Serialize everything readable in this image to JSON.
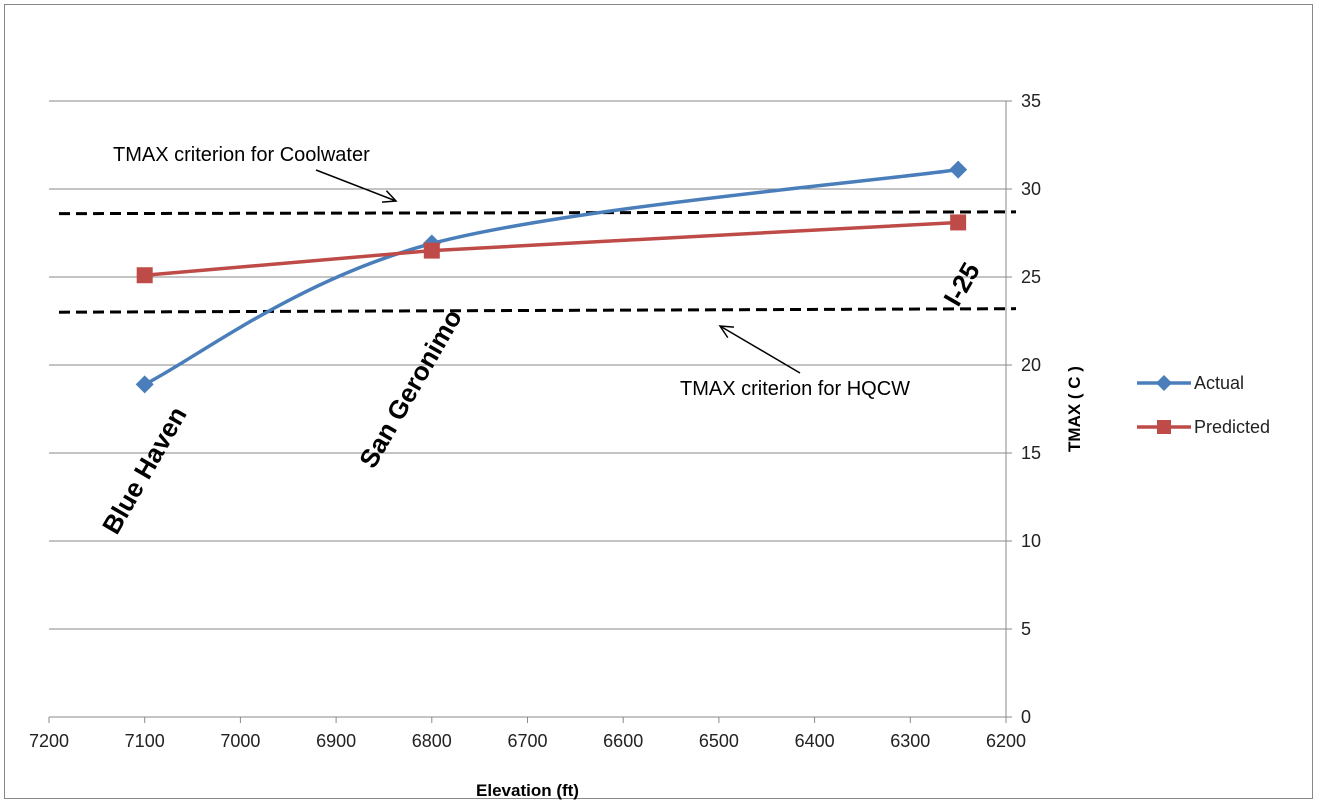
{
  "chart_data": {
    "type": "line",
    "xlabel": "Elevation (ft)",
    "ylabel": "TMAX ( C )",
    "xlim": [
      7200,
      6200
    ],
    "x_reversed": true,
    "x_ticks": [
      7200,
      7100,
      7000,
      6900,
      6800,
      6700,
      6600,
      6500,
      6400,
      6300,
      6200
    ],
    "ylim": [
      0,
      35
    ],
    "y_ticks": [
      0,
      5,
      10,
      15,
      20,
      25,
      30,
      35
    ],
    "y_axis_side": "right",
    "grid": "horizontal",
    "legend_position": "right",
    "series": [
      {
        "name": "Actual",
        "color": "#4a7ebb",
        "marker": "diamond",
        "smooth": true,
        "x": [
          7100,
          6800,
          6250
        ],
        "values": [
          18.9,
          26.9,
          31.1
        ]
      },
      {
        "name": "Predicted",
        "color": "#be4b48",
        "marker": "square",
        "smooth": false,
        "x": [
          7100,
          6800,
          6250
        ],
        "values": [
          25.1,
          26.5,
          28.1
        ]
      }
    ],
    "reference_lines": [
      {
        "label": "TMAX criterion for Coolwater",
        "y_start": 28.6,
        "y_end": 28.7
      },
      {
        "label": "TMAX criterion for HQCW",
        "y_start": 23.0,
        "y_end": 23.2
      }
    ],
    "site_labels": [
      {
        "text": "Blue Haven",
        "x": 7100
      },
      {
        "text": "San Geronimo",
        "x": 6800
      },
      {
        "text": "I-25",
        "x": 6250
      }
    ]
  }
}
